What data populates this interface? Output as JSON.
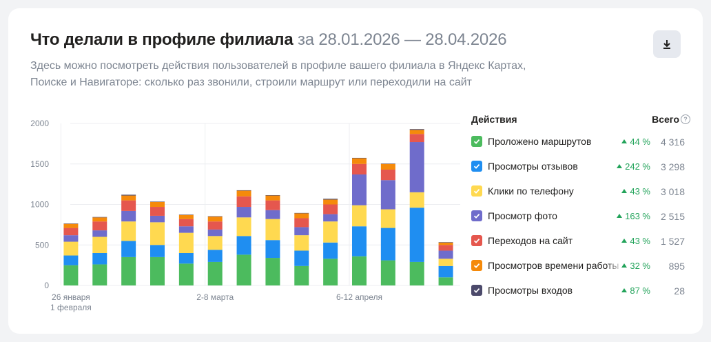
{
  "header": {
    "title": "Что делали в профиле филиала",
    "period": "за 28.01.2026 — 28.04.2026",
    "subtitle": "Здесь можно посмотреть действия пользователей в профиле вашего филиала в Яндекс Картах, Поиске и Навигаторе: сколько раз звонили, строили маршрут или переходили на сайт",
    "download_icon": "download-icon"
  },
  "legend": {
    "col_actions": "Действия",
    "col_total": "Всего",
    "help_icon": "?",
    "items": [
      {
        "label": "Проложено маршрутов",
        "delta": "44 %",
        "total": "4 316",
        "color": "#4cbb5e",
        "checked": true
      },
      {
        "label": "Просмотры отзывов",
        "delta": "242 %",
        "total": "3 298",
        "color": "#1f8ef1",
        "checked": true
      },
      {
        "label": "Клики по телефону",
        "delta": "43 %",
        "total": "3 018",
        "color": "#ffd950",
        "checked": true
      },
      {
        "label": "Просмотр фото",
        "delta": "163 %",
        "total": "2 515",
        "color": "#6f6ccb",
        "checked": true
      },
      {
        "label": "Переходов на сайт",
        "delta": "43 %",
        "total": "1 527",
        "color": "#e5574e",
        "checked": true
      },
      {
        "label": "Просмотров времени работы",
        "delta": "32 %",
        "total": "895",
        "color": "#f58a0a",
        "checked": true
      },
      {
        "label": "Просмотры входов",
        "delta": "87 %",
        "total": "28",
        "color": "#4c4a6b",
        "checked": true
      }
    ]
  },
  "chart_data": {
    "type": "bar",
    "stacked": true,
    "ylim": [
      0,
      2000
    ],
    "yticks": [
      0,
      500,
      1000,
      1500,
      2000
    ],
    "x_labels": [
      {
        "index": 0,
        "lines": [
          "26 января",
          "1 февраля"
        ]
      },
      {
        "index": 5,
        "lines": [
          "2-8 марта"
        ]
      },
      {
        "index": 10,
        "lines": [
          "6-12 апреля"
        ]
      }
    ],
    "grid": true,
    "categories": [
      "w1",
      "w2",
      "w3",
      "w4",
      "w5",
      "w6",
      "w7",
      "w8",
      "w9",
      "w10",
      "w11",
      "w12",
      "w13",
      "w14"
    ],
    "series": [
      {
        "name": "Проложено маршрутов",
        "color": "#4cbb5e",
        "values": [
          250,
          260,
          350,
          350,
          270,
          290,
          380,
          340,
          240,
          330,
          360,
          310,
          290,
          100
        ]
      },
      {
        "name": "Просмотры отзывов",
        "color": "#1f8ef1",
        "values": [
          120,
          140,
          200,
          150,
          130,
          150,
          230,
          220,
          190,
          200,
          370,
          400,
          670,
          140
        ]
      },
      {
        "name": "Клики по телефону",
        "color": "#ffd950",
        "values": [
          170,
          200,
          240,
          280,
          250,
          170,
          230,
          260,
          190,
          260,
          260,
          230,
          190,
          90
        ]
      },
      {
        "name": "Просмотр фото",
        "color": "#6f6ccb",
        "values": [
          80,
          80,
          130,
          80,
          80,
          80,
          130,
          110,
          100,
          90,
          380,
          360,
          620,
          100
        ]
      },
      {
        "name": "Переходов на сайт",
        "color": "#e5574e",
        "values": [
          90,
          110,
          130,
          110,
          90,
          100,
          130,
          120,
          110,
          120,
          130,
          130,
          100,
          70
        ]
      },
      {
        "name": "Просмотров времени работы",
        "color": "#f58a0a",
        "values": [
          50,
          50,
          60,
          60,
          50,
          60,
          70,
          60,
          60,
          60,
          70,
          70,
          50,
          30
        ]
      },
      {
        "name": "Просмотры входов",
        "color": "#4c4a6b",
        "values": [
          5,
          5,
          10,
          5,
          5,
          5,
          5,
          5,
          5,
          10,
          5,
          5,
          10,
          5
        ]
      }
    ]
  }
}
